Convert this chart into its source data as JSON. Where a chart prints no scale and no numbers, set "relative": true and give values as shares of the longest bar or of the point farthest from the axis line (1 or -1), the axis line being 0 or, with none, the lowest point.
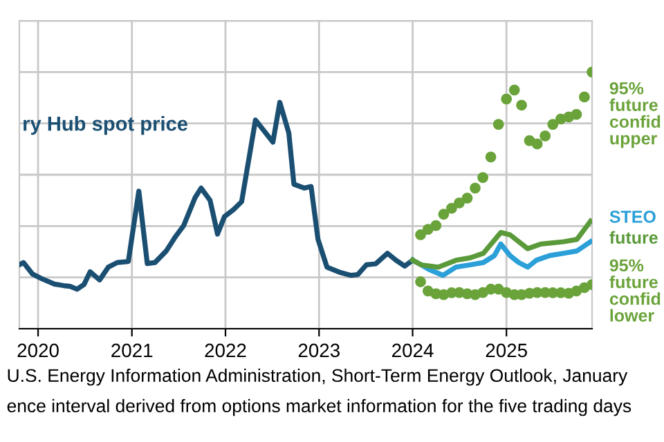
{
  "chart_data": {
    "type": "line",
    "relative": true,
    "grid": true,
    "xlim": [
      "2019-10-20",
      "2025-12-01"
    ],
    "xticks": [
      {
        "value": "2020-01-01",
        "label": "2020"
      },
      {
        "value": "2021-01-01",
        "label": "2021"
      },
      {
        "value": "2022-01-01",
        "label": "2022"
      },
      {
        "value": "2023-01-01",
        "label": "2023"
      },
      {
        "value": "2024-01-01",
        "label": "2024"
      },
      {
        "value": "2025-01-01",
        "label": "2025"
      }
    ],
    "series": [
      {
        "name": "ry Hub spot price",
        "color": "#1b4f72",
        "x": [
          "2019-10-20",
          "2019-11-05",
          "2019-12-10",
          "2020-01-15",
          "2020-03-05",
          "2020-04-10",
          "2020-05-05",
          "2020-06-01",
          "2020-06-28",
          "2020-07-22",
          "2020-08-28",
          "2020-10-01",
          "2020-11-05",
          "2020-12-18",
          "2021-01-28",
          "2021-03-02",
          "2021-04-01",
          "2021-05-15",
          "2021-06-18",
          "2021-07-22",
          "2021-09-05",
          "2021-09-28",
          "2021-11-02",
          "2021-12-01",
          "2021-12-28",
          "2022-02-01",
          "2022-03-05",
          "2022-04-28",
          "2022-07-05",
          "2022-08-01",
          "2022-09-05",
          "2022-09-25",
          "2022-11-05",
          "2022-12-01",
          "2022-12-28",
          "2023-02-01",
          "2023-03-25",
          "2023-05-05",
          "2023-06-01",
          "2023-07-05",
          "2023-08-10",
          "2023-09-25",
          "2023-10-28",
          "2023-12-01",
          "2024-01-01"
        ],
        "values": [
          0.249,
          0.258,
          0.213,
          0.195,
          0.174,
          0.168,
          0.165,
          0.154,
          0.172,
          0.222,
          0.19,
          0.24,
          0.258,
          0.262,
          0.536,
          0.254,
          0.258,
          0.303,
          0.356,
          0.402,
          0.512,
          0.548,
          0.5,
          0.369,
          0.437,
          0.464,
          0.495,
          0.813,
          0.727,
          0.882,
          0.763,
          0.563,
          0.548,
          0.554,
          0.348,
          0.24,
          0.219,
          0.208,
          0.211,
          0.249,
          0.253,
          0.294,
          0.267,
          0.244,
          0.267
        ]
      },
      {
        "name": "95%\nfuture\nconfid\nupper",
        "color": "#6aa33a",
        "type": "scatter",
        "marker": "circle",
        "x": [
          "2024-02",
          "2024-03",
          "2024-04",
          "2024-05",
          "2024-06",
          "2024-07",
          "2024-08",
          "2024-09",
          "2024-10",
          "2024-11",
          "2024-12",
          "2025-01",
          "2025-02",
          "2025-03",
          "2025-04",
          "2025-05",
          "2025-06",
          "2025-07",
          "2025-08",
          "2025-09",
          "2025-10",
          "2025-11",
          "2025-12"
        ],
        "values": [
          0.366,
          0.387,
          0.402,
          0.446,
          0.469,
          0.49,
          0.509,
          0.548,
          0.589,
          0.669,
          0.796,
          0.895,
          0.93,
          0.871,
          0.733,
          0.72,
          0.751,
          0.796,
          0.817,
          0.825,
          0.835,
          0.903,
          1.0
        ]
      },
      {
        "name": "STEO",
        "color": "#2a9fd8",
        "x": [
          "2024-01-01",
          "2024-02-03",
          "2024-03-05",
          "2024-04-28",
          "2024-06-18",
          "2024-08-12",
          "2024-10-03",
          "2024-11-15",
          "2024-12-10",
          "2025-01-15",
          "2025-02-18",
          "2025-03-25",
          "2025-04-28",
          "2025-06-18",
          "2025-08-12",
          "2025-10-03",
          "2025-11-25"
        ],
        "values": [
          0.267,
          0.249,
          0.231,
          0.208,
          0.24,
          0.249,
          0.258,
          0.285,
          0.33,
          0.285,
          0.258,
          0.24,
          0.267,
          0.285,
          0.294,
          0.303,
          0.339
        ]
      },
      {
        "name": "future",
        "color": "#5b9a3a",
        "x": [
          "2024-01-01",
          "2024-02-03",
          "2024-04-10",
          "2024-06-18",
          "2024-08-12",
          "2024-10-03",
          "2024-12-10",
          "2025-01-15",
          "2025-03-25",
          "2025-05-15",
          "2025-08-12",
          "2025-10-03",
          "2025-11-25"
        ],
        "values": [
          0.267,
          0.249,
          0.24,
          0.267,
          0.276,
          0.294,
          0.375,
          0.366,
          0.312,
          0.33,
          0.339,
          0.348,
          0.419
        ]
      },
      {
        "name": "95%\nfuture\nconfid\nlower",
        "color": "#6aa33a",
        "type": "scatter",
        "marker": "circle",
        "x": [
          "2024-02",
          "2024-03",
          "2024-04",
          "2024-05",
          "2024-06",
          "2024-07",
          "2024-08",
          "2024-09",
          "2024-10",
          "2024-11",
          "2024-12",
          "2025-01",
          "2025-02",
          "2025-03",
          "2025-04",
          "2025-05",
          "2025-06",
          "2025-07",
          "2025-08",
          "2025-09",
          "2025-10",
          "2025-11",
          "2025-12"
        ],
        "values": [
          0.183,
          0.147,
          0.136,
          0.133,
          0.14,
          0.141,
          0.136,
          0.133,
          0.141,
          0.154,
          0.154,
          0.141,
          0.133,
          0.133,
          0.138,
          0.141,
          0.141,
          0.14,
          0.14,
          0.138,
          0.147,
          0.16,
          0.172
        ]
      }
    ],
    "annotations": [
      "U.S. Energy Information Administration, Short-Term Energy Outlook, January",
      "ence interval derived from options market information for the five trading days"
    ]
  }
}
